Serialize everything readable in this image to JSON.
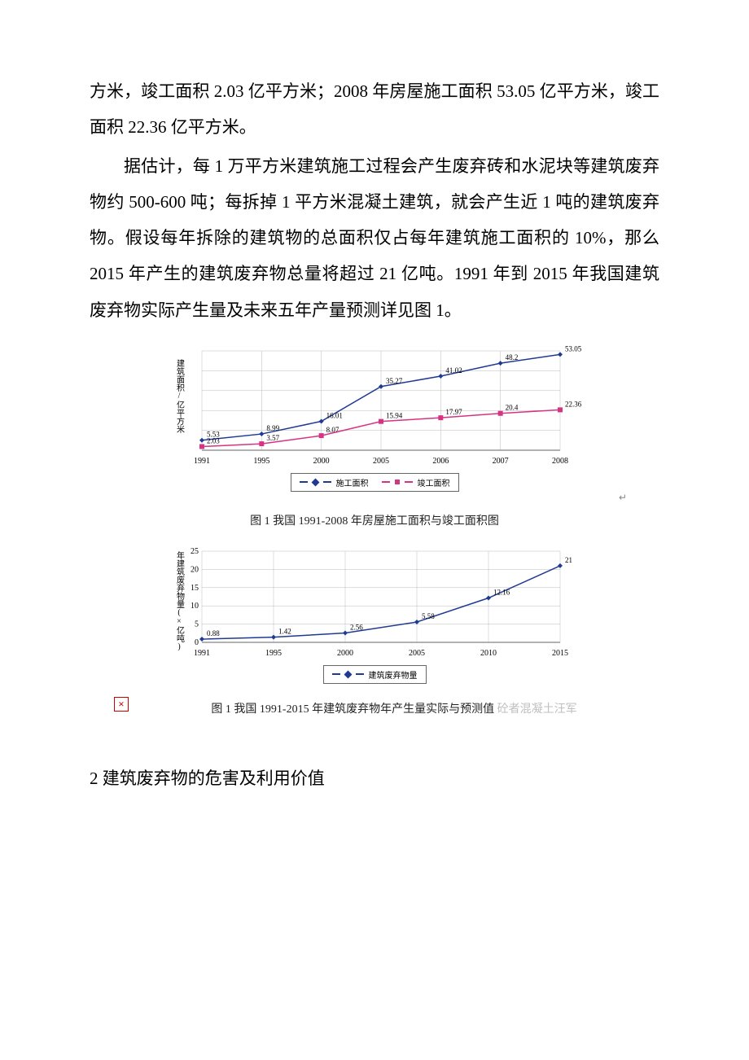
{
  "paragraphs": {
    "p1": "方米，竣工面积 2.03 亿平方米；2008 年房屋施工面积 53.05 亿平方米，竣工面积 22.36 亿平方米。",
    "p2": "据估计，每 1 万平方米建筑施工过程会产生废弃砖和水泥块等建筑废弃物约 500-600 吨；每拆掉 1 平方米混凝土建筑，就会产生近 1 吨的建筑废弃物。假设每年拆除的建筑物的总面积仅占每年建筑施工面积的 10%，那么 2015 年产生的建筑废弃物总量将超过 21 亿吨。1991 年到 2015 年我国建筑废弃物实际产生量及未来五年产量预测详见图 1。"
  },
  "chart1": {
    "type": "line",
    "y_axis_title": "建筑面积/亿平方米",
    "categories": [
      "1991",
      "1995",
      "2000",
      "2005",
      "2006",
      "2007",
      "2008"
    ],
    "series": [
      {
        "name": "施工面积",
        "color": "#1f3a93",
        "marker": "diamond",
        "values": [
          5.53,
          8.99,
          16.01,
          35.27,
          41.02,
          48.2,
          53.05
        ],
        "labels": [
          "5.53",
          "8.99",
          "16.01",
          "35.27",
          "41.02",
          "48.2",
          "53.05"
        ]
      },
      {
        "name": "竣工面积",
        "color": "#d63384",
        "marker": "square",
        "values": [
          2.03,
          3.57,
          8.07,
          15.94,
          17.97,
          20.4,
          22.36
        ],
        "labels": [
          "2.03",
          "3.57",
          "8.07",
          "15.94",
          "17.97",
          "20.4",
          "22.36"
        ]
      }
    ],
    "ylim": [
      0,
      55
    ],
    "grid_color": "#bbbbbb",
    "caption": "图 1 我国 1991-2008 年房屋施工面积与竣工面积图"
  },
  "chart2": {
    "type": "line",
    "y_axis_title": "年建筑废弃物量(×亿吨)",
    "categories": [
      "1991",
      "1995",
      "2000",
      "2005",
      "2010",
      "2015"
    ],
    "series": [
      {
        "name": "建筑废弃物量",
        "color": "#1f3a93",
        "marker": "diamond",
        "values": [
          0.88,
          1.42,
          2.56,
          5.58,
          12.16,
          21
        ],
        "labels": [
          "0.88",
          "1.42",
          "2.56",
          "5.58",
          "12.16",
          "21"
        ]
      }
    ],
    "ylim": [
      0,
      25
    ],
    "ytick_step": 5,
    "grid_color": "#bbbbbb",
    "caption": "图 1   我国 1991-2015 年建筑废弃物年产生量实际与预测值",
    "watermark": "砼者混凝土汪军"
  },
  "section_heading": "2 建筑废弃物的危害及利用价值",
  "broken_image_symbol": "×"
}
